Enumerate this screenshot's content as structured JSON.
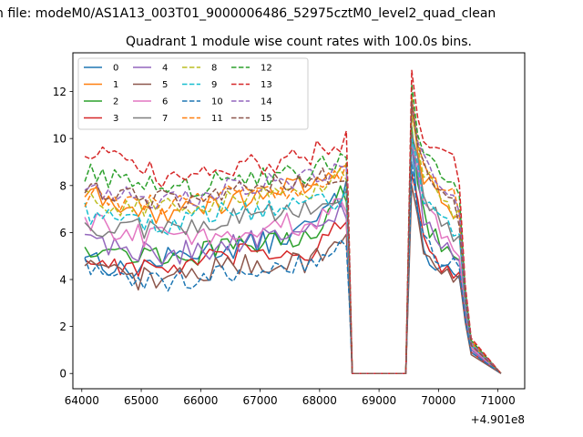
{
  "chart_data": {
    "type": "line",
    "suptitle": "n file: modeM0/AS1A13_003T01_9000006486_52975cztM0_level2_quad_clean",
    "title": "Quadrant 1 module wise count rates with 100.0s bins.",
    "xlabel": "",
    "ylabel": "",
    "x_offset_label": "+4.901e8",
    "xlim": [
      63850,
      71450
    ],
    "ylim": [
      -0.65,
      13.65
    ],
    "x_ticks": [
      64000,
      65000,
      66000,
      67000,
      68000,
      69000,
      70000,
      71000
    ],
    "y_ticks": [
      0,
      2,
      4,
      6,
      8,
      10,
      12
    ],
    "grid": false,
    "legend_position": "top-left",
    "x_start": 64050,
    "x_step": 100,
    "gap": {
      "start": 68550,
      "end": 69450,
      "value": 0
    },
    "series": [
      {
        "name": "0",
        "color": "#1f77b4",
        "dashed": false,
        "spike": 10.0,
        "level": [
          5.2,
          4.3,
          4.8,
          5.2,
          5.4,
          5.6,
          6.2,
          7.8
        ],
        "drop": [
          7.3,
          5.5,
          5.0,
          4.7,
          4.9,
          4.5,
          4.4,
          4.0,
          2.5,
          1.0
        ]
      },
      {
        "name": "1",
        "color": "#ff7f0e",
        "dashed": false,
        "spike": 11.3,
        "level": [
          7.7,
          7.0,
          6.8,
          7.0,
          7.4,
          7.8,
          7.9,
          8.9
        ],
        "drop": [
          9.8,
          8.5,
          8.3,
          7.9,
          7.6,
          7.0,
          6.8,
          6.3,
          3.2,
          1.4
        ]
      },
      {
        "name": "2",
        "color": "#2ca02c",
        "dashed": false,
        "spike": 10.5,
        "level": [
          5.5,
          5.1,
          5.0,
          5.1,
          5.4,
          5.6,
          5.9,
          7.8
        ],
        "drop": [
          8.5,
          6.8,
          6.2,
          5.9,
          5.5,
          5.3,
          5.2,
          4.9,
          2.8,
          1.1
        ]
      },
      {
        "name": "3",
        "color": "#d62728",
        "dashed": false,
        "spike": 8.5,
        "level": [
          4.9,
          4.6,
          4.4,
          4.7,
          5.0,
          5.1,
          5.2,
          6.4
        ],
        "drop": [
          7.0,
          5.8,
          5.2,
          4.9,
          4.6,
          4.5,
          4.3,
          4.0,
          2.4,
          0.9
        ]
      },
      {
        "name": "4",
        "color": "#9467bd",
        "dashed": false,
        "spike": 9.5,
        "level": [
          5.9,
          5.3,
          5.1,
          5.2,
          5.6,
          5.8,
          6.0,
          7.0
        ],
        "drop": [
          8.2,
          6.5,
          6.0,
          5.8,
          5.6,
          5.5,
          5.2,
          5.0,
          2.7,
          1.0
        ]
      },
      {
        "name": "5",
        "color": "#8c564b",
        "dashed": false,
        "spike": 8.0,
        "level": [
          4.5,
          4.1,
          4.0,
          4.3,
          4.6,
          4.7,
          4.8,
          5.8
        ],
        "drop": [
          6.4,
          5.5,
          5.0,
          4.8,
          4.5,
          4.4,
          4.2,
          4.0,
          2.2,
          0.8
        ]
      },
      {
        "name": "6",
        "color": "#e377c2",
        "dashed": false,
        "spike": 9.8,
        "level": [
          6.5,
          6.0,
          5.8,
          5.8,
          6.0,
          6.3,
          6.4,
          7.2
        ],
        "drop": [
          8.6,
          7.0,
          6.6,
          6.3,
          6.0,
          5.8,
          5.6,
          5.3,
          2.9,
          1.1
        ]
      },
      {
        "name": "7",
        "color": "#7f7f7f",
        "dashed": false,
        "spike": 10.2,
        "level": [
          6.2,
          6.3,
          6.1,
          6.4,
          6.6,
          6.8,
          7.0,
          7.6
        ],
        "drop": [
          9.0,
          7.5,
          7.0,
          6.8,
          6.5,
          6.4,
          6.0,
          5.8,
          3.0,
          1.2
        ]
      },
      {
        "name": "8",
        "color": "#bcbd22",
        "dashed": true,
        "spike": 11.0,
        "level": [
          7.5,
          7.2,
          7.0,
          7.1,
          7.4,
          7.7,
          7.8,
          8.5
        ],
        "drop": [
          9.5,
          8.5,
          8.2,
          7.8,
          7.6,
          7.3,
          7.0,
          6.6,
          3.3,
          1.3
        ]
      },
      {
        "name": "9",
        "color": "#17becf",
        "dashed": true,
        "spike": 10.0,
        "level": [
          6.9,
          6.6,
          6.3,
          6.6,
          6.9,
          7.1,
          7.1,
          7.6
        ],
        "drop": [
          8.8,
          7.6,
          7.4,
          7.0,
          6.9,
          6.6,
          6.3,
          6.0,
          3.1,
          1.2
        ]
      },
      {
        "name": "10",
        "color": "#1f77b4",
        "dashed": true,
        "spike": 9.0,
        "level": [
          4.5,
          4.0,
          3.8,
          4.0,
          4.4,
          4.6,
          4.7,
          5.6
        ],
        "drop": [
          6.8,
          5.6,
          5.3,
          5.0,
          4.8,
          4.6,
          4.5,
          4.2,
          2.3,
          0.9
        ]
      },
      {
        "name": "11",
        "color": "#ff7f0e",
        "dashed": true,
        "spike": 11.8,
        "level": [
          7.6,
          7.3,
          7.1,
          7.4,
          7.6,
          7.9,
          8.0,
          8.6
        ],
        "drop": [
          9.9,
          8.8,
          8.6,
          8.3,
          8.0,
          7.8,
          7.5,
          7.0,
          3.5,
          1.3
        ]
      },
      {
        "name": "12",
        "color": "#2ca02c",
        "dashed": true,
        "spike": 12.3,
        "level": [
          8.6,
          8.3,
          7.8,
          7.9,
          8.3,
          8.5,
          8.6,
          9.3
        ],
        "drop": [
          10.2,
          9.5,
          9.0,
          8.7,
          8.5,
          8.2,
          7.8,
          7.4,
          3.6,
          1.4
        ]
      },
      {
        "name": "13",
        "color": "#d62728",
        "dashed": true,
        "spike": 12.9,
        "level": [
          9.6,
          8.9,
          8.4,
          8.4,
          8.8,
          9.0,
          9.3,
          9.9
        ],
        "drop": [
          11.0,
          10.2,
          9.8,
          9.5,
          9.7,
          9.5,
          9.0,
          8.4,
          3.8,
          1.5
        ]
      },
      {
        "name": "14",
        "color": "#9467bd",
        "dashed": true,
        "spike": 11.5,
        "level": [
          8.1,
          7.7,
          7.5,
          7.6,
          7.9,
          8.2,
          8.3,
          8.8
        ],
        "drop": [
          10.0,
          9.0,
          8.6,
          8.2,
          8.0,
          7.7,
          7.3,
          6.8,
          3.4,
          1.3
        ]
      },
      {
        "name": "15",
        "color": "#8c564b",
        "dashed": true,
        "spike": 11.6,
        "level": [
          7.9,
          7.6,
          7.4,
          7.5,
          7.8,
          8.0,
          8.1,
          8.7
        ],
        "drop": [
          9.9,
          8.9,
          8.5,
          8.1,
          7.9,
          7.6,
          7.2,
          6.7,
          3.3,
          1.2
        ]
      }
    ]
  }
}
